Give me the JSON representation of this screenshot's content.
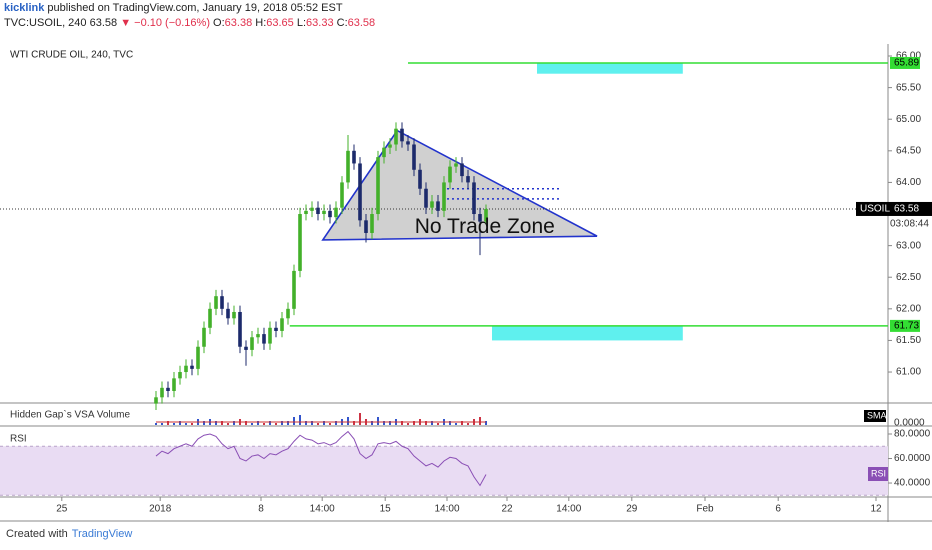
{
  "header": {
    "author": "kicklink",
    "published": "published on TradingView.com, January 19, 2018 05:52 EST",
    "symbol": "TVC:USOIL, 240",
    "last": "63.58",
    "change": "▼ −0.10 (−0.16%)",
    "ohlc": [
      "O:",
      "63.38",
      "H:",
      "63.65",
      "L:",
      "63.33",
      "C:",
      "63.58"
    ]
  },
  "footer": {
    "created": "Created with",
    "brand": "TradingView"
  },
  "chart_data": {
    "type": "candlestick",
    "title": "WTI CRUDE OIL, 240, TVC",
    "x": [
      26,
      27,
      28,
      29,
      30,
      31,
      32,
      33,
      34,
      35,
      36,
      37,
      38,
      39,
      40,
      41,
      42,
      43,
      44,
      45,
      46,
      47,
      48,
      49,
      50,
      51,
      52,
      53,
      54,
      55,
      56,
      57,
      58,
      59,
      60,
      61,
      62,
      63,
      64,
      65,
      66,
      67,
      68,
      69,
      70,
      71,
      72,
      73,
      74,
      75,
      76,
      77,
      78,
      79,
      80,
      81
    ],
    "open": [
      60.5,
      60.6,
      60.75,
      60.7,
      60.9,
      61.0,
      61.1,
      61.05,
      61.4,
      61.7,
      62.0,
      62.2,
      62.0,
      61.85,
      61.95,
      61.4,
      61.35,
      61.55,
      61.6,
      61.45,
      61.7,
      61.65,
      61.85,
      62.0,
      62.6,
      63.5,
      63.55,
      63.6,
      63.5,
      63.55,
      63.45,
      63.6,
      64.0,
      64.5,
      64.3,
      63.4,
      63.2,
      63.5,
      64.4,
      64.55,
      64.6,
      64.85,
      64.65,
      64.6,
      64.2,
      63.9,
      63.6,
      63.7,
      63.55,
      64.0,
      64.25,
      64.3,
      64.1,
      64.0,
      63.5,
      63.38
    ],
    "high": [
      60.7,
      60.85,
      60.85,
      61.0,
      61.1,
      61.2,
      61.2,
      61.5,
      61.8,
      62.1,
      62.3,
      62.3,
      62.1,
      62.05,
      62.05,
      61.5,
      61.65,
      61.7,
      61.7,
      61.8,
      61.8,
      61.95,
      62.1,
      62.7,
      63.6,
      63.65,
      63.7,
      63.7,
      63.65,
      63.65,
      63.7,
      64.1,
      64.75,
      64.6,
      64.4,
      63.5,
      63.6,
      64.5,
      64.65,
      64.7,
      64.95,
      64.95,
      64.75,
      64.7,
      64.3,
      64.0,
      63.8,
      63.8,
      64.1,
      64.35,
      64.4,
      64.4,
      64.2,
      64.1,
      63.6,
      63.65
    ],
    "low": [
      60.4,
      60.5,
      60.6,
      60.6,
      60.8,
      60.9,
      60.95,
      60.95,
      61.3,
      61.6,
      61.9,
      61.9,
      61.75,
      61.75,
      61.3,
      61.1,
      61.25,
      61.45,
      61.35,
      61.35,
      61.55,
      61.55,
      61.75,
      61.9,
      62.5,
      63.4,
      63.45,
      63.4,
      63.4,
      63.35,
      63.35,
      63.5,
      63.9,
      64.2,
      63.3,
      63.05,
      63.1,
      63.4,
      64.3,
      64.45,
      64.5,
      64.55,
      64.5,
      64.1,
      63.8,
      63.5,
      63.5,
      63.45,
      63.45,
      63.9,
      64.15,
      64.0,
      63.9,
      63.4,
      62.85,
      63.33
    ],
    "close": [
      60.6,
      60.75,
      60.7,
      60.9,
      61.0,
      61.1,
      61.05,
      61.4,
      61.7,
      62.0,
      62.2,
      62.0,
      61.85,
      61.95,
      61.4,
      61.35,
      61.55,
      61.6,
      61.45,
      61.7,
      61.65,
      61.85,
      62.0,
      62.6,
      63.5,
      63.55,
      63.6,
      63.5,
      63.55,
      63.45,
      63.6,
      64.0,
      64.5,
      64.3,
      63.4,
      63.2,
      63.5,
      64.4,
      64.55,
      64.6,
      64.85,
      64.65,
      64.6,
      64.2,
      63.9,
      63.6,
      63.7,
      63.55,
      64.0,
      64.25,
      64.3,
      64.1,
      64.0,
      63.5,
      63.38,
      63.58
    ],
    "up_color": "#43b02a",
    "down_color": "#1c2a6b",
    "xlim": [
      0,
      148
    ],
    "xticks": [
      {
        "value": 10.3,
        "label": "25"
      },
      {
        "value": 26.7,
        "label": "2018"
      },
      {
        "value": 43.5,
        "label": "8"
      },
      {
        "value": 53.7,
        "label": "14:00"
      },
      {
        "value": 64.2,
        "label": "15"
      },
      {
        "value": 74.5,
        "label": "14:00"
      },
      {
        "value": 84.5,
        "label": "22"
      },
      {
        "value": 94.8,
        "label": "14:00"
      },
      {
        "value": 105.3,
        "label": "29"
      },
      {
        "value": 117.5,
        "label": "Feb"
      },
      {
        "value": 129.7,
        "label": "6"
      },
      {
        "value": 146,
        "label": "12"
      }
    ],
    "ylim": [
      60.51,
      66.19
    ],
    "yticks": [
      {
        "value": 61,
        "label": "61.00"
      },
      {
        "value": 61.5,
        "label": "61.50"
      },
      {
        "value": 62,
        "label": "62.00"
      },
      {
        "value": 62.5,
        "label": "62.50"
      },
      {
        "value": 63,
        "label": "63.00"
      },
      {
        "value": 64,
        "label": "64.00"
      },
      {
        "value": 64.5,
        "label": "64.50"
      },
      {
        "value": 65,
        "label": "65.00"
      },
      {
        "value": 65.5,
        "label": "65.50"
      },
      {
        "value": 66,
        "label": "66.00"
      }
    ],
    "last_price": {
      "value": 63.58,
      "label": "63.58",
      "symbol": "USOIL",
      "countdown": "03:08:44"
    },
    "levels": [
      {
        "value": 65.89,
        "label": "65.89",
        "x_start": 68
      },
      {
        "value": 61.73,
        "label": "61.73",
        "x_start": 48.3
      }
    ],
    "level_color": "#33dd33",
    "zones": [
      {
        "top": 65.89,
        "bottom": 65.72,
        "x": [
          89.5,
          113.8
        ]
      },
      {
        "top": 61.73,
        "bottom": 61.5,
        "x": [
          82,
          113.8
        ]
      }
    ],
    "zone_color": "#5ff0ee",
    "triangle": {
      "x": [
        66.2,
        99.5,
        53.8
      ],
      "y": [
        64.82,
        63.15,
        63.09
      ],
      "color": "#2233cc"
    },
    "dotted_levels": [
      {
        "value": 63.9,
        "x": [
          74.5,
          93.3
        ]
      },
      {
        "value": 63.74,
        "x": [
          74.5,
          93.3
        ]
      }
    ],
    "annotation": {
      "text": "No Trade Zone",
      "x": 80.8,
      "y": 63.29
    },
    "volume": {
      "title": "Hidden Gap`s VSA Volume",
      "badge": "SMA",
      "axis_label": "0.0000",
      "ylim": [
        0,
        10
      ],
      "values": [
        1,
        1,
        2,
        1,
        2,
        1,
        1,
        3,
        2,
        3,
        2,
        2,
        1,
        2,
        3,
        2,
        1,
        2,
        1,
        2,
        1,
        2,
        2,
        4,
        5,
        2,
        2,
        1,
        2,
        1,
        2,
        3,
        4,
        2,
        6,
        3,
        2,
        4,
        2,
        2,
        3,
        2,
        1,
        2,
        3,
        2,
        2,
        1,
        3,
        2,
        1,
        2,
        1,
        3,
        4,
        2
      ]
    },
    "rsi": {
      "title": "RSI",
      "badge": "RSI",
      "color": "#8a4fb5",
      "band": [
        30,
        70
      ],
      "ylim": [
        28.6,
        84.9
      ],
      "yticks": [
        {
          "value": 80,
          "label": "80.0000"
        },
        {
          "value": 60,
          "label": "60.0000"
        },
        {
          "value": 40,
          "label": "40.0000"
        }
      ],
      "values": [
        62,
        66,
        64,
        68,
        70,
        72,
        70,
        76,
        79,
        80,
        78,
        72,
        68,
        70,
        60,
        58,
        62,
        63,
        60,
        64,
        63,
        66,
        68,
        74,
        79,
        76,
        75,
        72,
        73,
        71,
        73,
        78,
        82,
        76,
        64,
        60,
        63,
        72,
        73,
        72,
        74,
        70,
        68,
        62,
        58,
        54,
        56,
        53,
        58,
        61,
        60,
        56,
        54,
        45,
        38,
        47
      ]
    }
  }
}
